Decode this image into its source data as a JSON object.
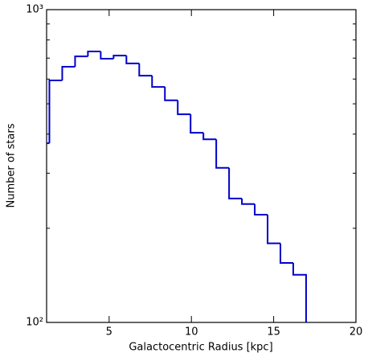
{
  "chart_data": {
    "type": "histogram",
    "xlabel": "Galactocentric Radius [kpc]",
    "ylabel": "Number of stars",
    "bins": [
      0.59,
      1.37,
      2.15,
      2.93,
      3.71,
      4.49,
      5.27,
      6.05,
      6.83,
      7.61,
      8.39,
      9.17,
      9.95,
      10.73,
      11.51,
      12.29,
      13.07,
      13.85,
      14.63,
      15.41,
      16.19,
      16.97
    ],
    "counts": [
      374,
      594,
      657,
      709,
      735,
      697,
      713,
      673,
      615,
      566,
      513,
      463,
      404,
      385,
      312,
      249,
      239,
      221,
      179,
      155,
      142
    ],
    "color": "#0000cc",
    "xlim": [
      1.2,
      20
    ],
    "xticks": [
      5,
      10,
      15,
      20
    ],
    "ylim": [
      100,
      1000
    ],
    "ylog": true,
    "yticks": [
      {
        "value": 100,
        "label": "10²"
      },
      {
        "value": 1000,
        "label": "10³"
      }
    ],
    "yminorticks": [
      200,
      300,
      400,
      500,
      600,
      700,
      800,
      900
    ],
    "grid": false
  }
}
